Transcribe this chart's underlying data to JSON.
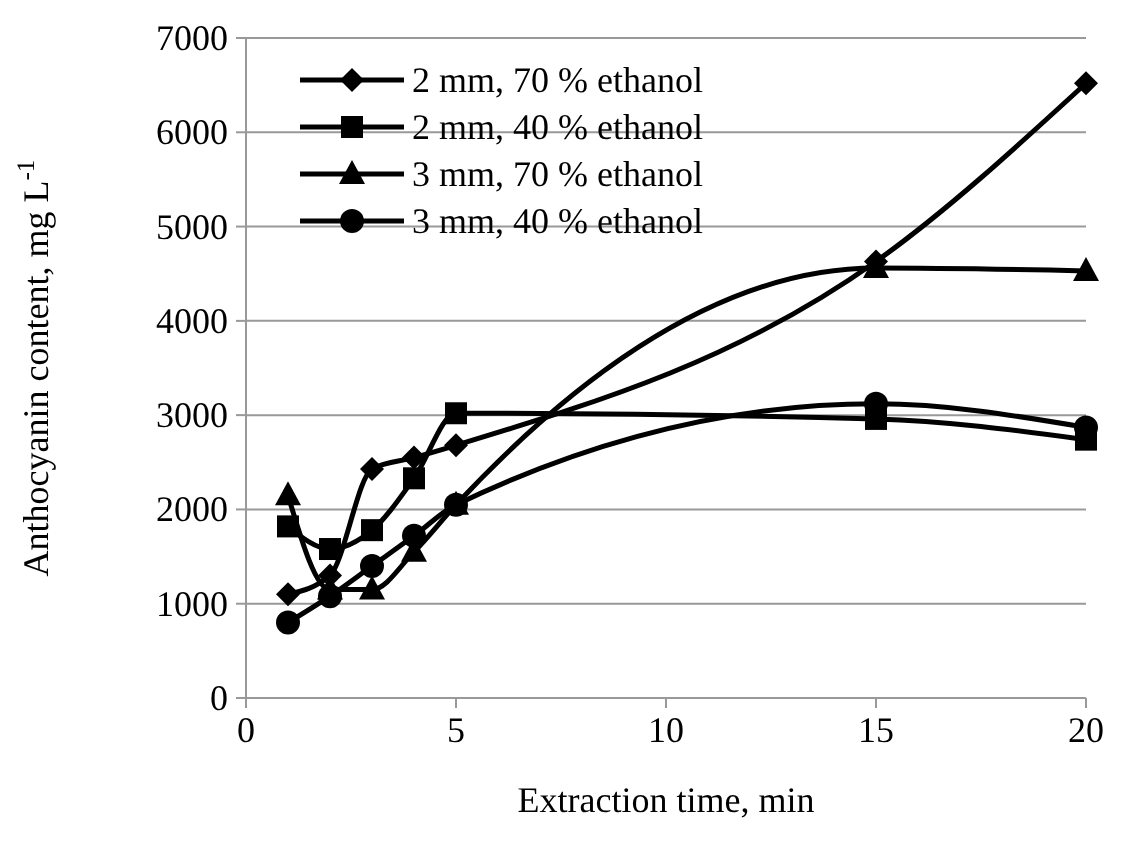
{
  "chart_data": {
    "type": "line",
    "xlabel": "Extraction time, min",
    "ylabel": "Anthocyanin content, mg L$^{-1}$",
    "x": [
      1,
      2,
      3,
      4,
      5,
      15,
      20
    ],
    "series": [
      {
        "name": "2 mm, 70 % ethanol",
        "color": "#000000",
        "marker": "diamond",
        "values": [
          1100,
          1300,
          2430,
          2550,
          2680,
          4630,
          6520
        ]
      },
      {
        "name": "2 mm, 40 % ethanol",
        "color": "#000000",
        "marker": "square",
        "values": [
          1820,
          1580,
          1780,
          2330,
          3020,
          2960,
          2740
        ]
      },
      {
        "name": "3 mm, 70 % ethanol",
        "color": "#000000",
        "marker": "triangle",
        "values": [
          2150,
          1150,
          1150,
          1550,
          2050,
          4560,
          4530
        ]
      },
      {
        "name": "3 mm, 40 % ethanol",
        "color": "#000000",
        "marker": "circle",
        "values": [
          800,
          1080,
          1400,
          1720,
          2050,
          3120,
          2870
        ]
      }
    ],
    "xlim": [
      0,
      20
    ],
    "xticks": [
      0,
      5,
      10,
      15,
      20
    ],
    "ylim": [
      0,
      7000
    ],
    "yticks": [
      0,
      1000,
      2000,
      3000,
      4000,
      5000,
      6000,
      7000
    ],
    "grid": "y",
    "legend": "top left",
    "line_style": "solid"
  }
}
